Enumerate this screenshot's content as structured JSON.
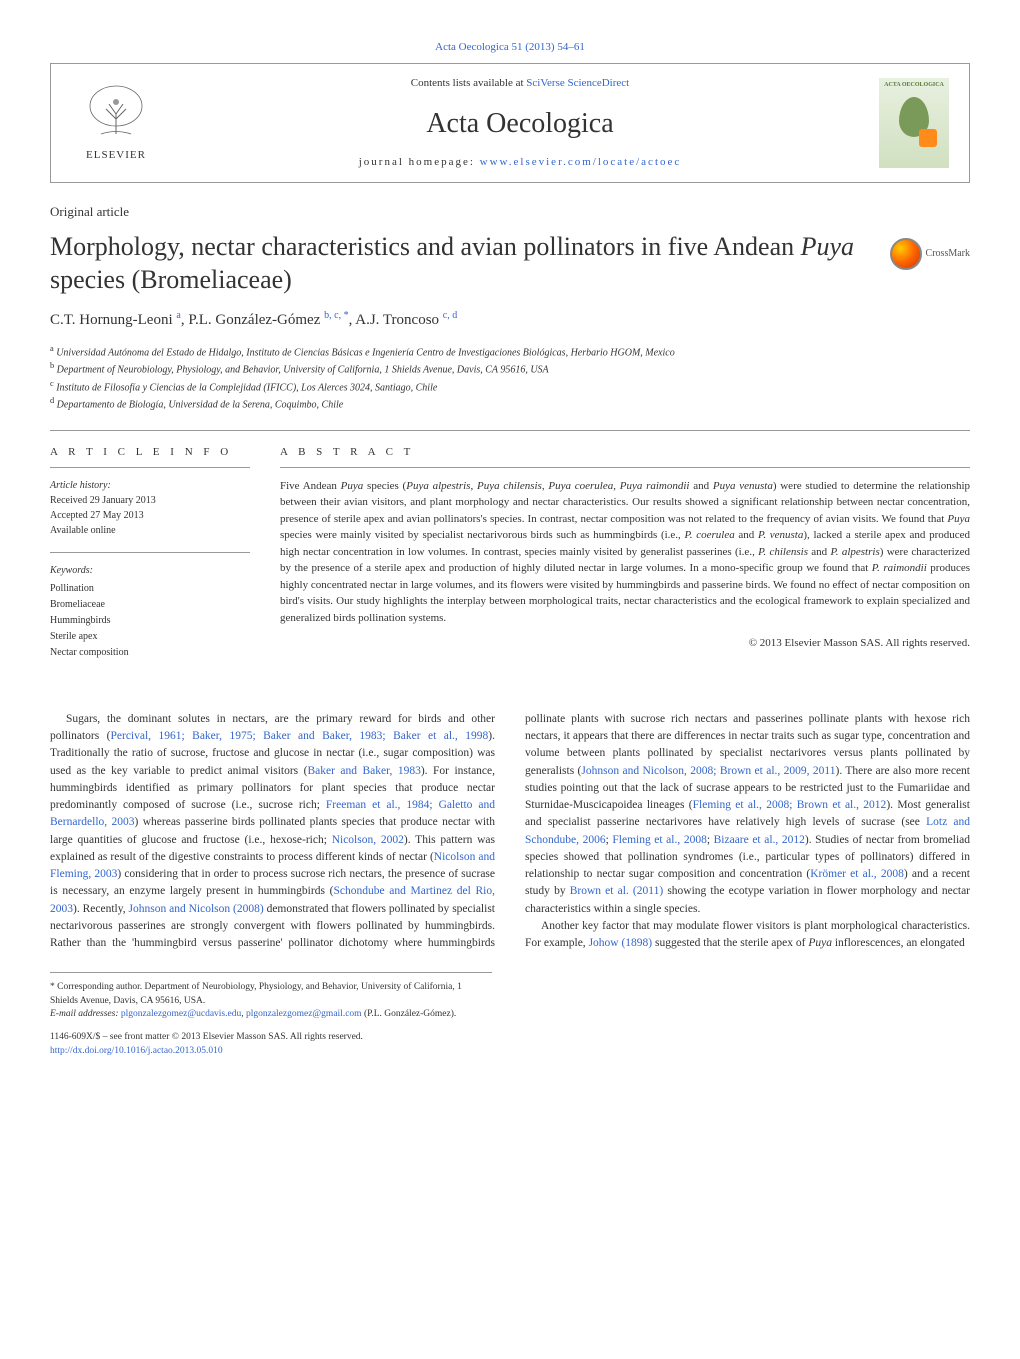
{
  "top_link": "Acta Oecologica 51 (2013) 54–61",
  "header": {
    "contents_prefix": "Contents lists available at ",
    "contents_link": "SciVerse ScienceDirect",
    "journal_name": "Acta Oecologica",
    "homepage_prefix": "journal homepage: ",
    "homepage_link": "www.elsevier.com/locate/actoec",
    "elsevier_label": "ELSEVIER",
    "cover_label": "ACTA OECOLOGICA"
  },
  "article_type": "Original article",
  "title_html": "Morphology, nectar characteristics and avian pollinators in five Andean <em>Puya</em> species (Bromeliaceae)",
  "crossmark_label": "CrossMark",
  "authors_html": "C.T. Hornung-Leoni <sup>a</sup>, P.L. González-Gómez <sup>b, c, *</sup>, A.J. Troncoso <sup>c, d</sup>",
  "affiliations": [
    "a Universidad Autónoma del Estado de Hidalgo, Instituto de Ciencias Básicas e Ingeniería Centro de Investigaciones Biológicas, Herbario HGOM, Mexico",
    "b Department of Neurobiology, Physiology, and Behavior, University of California, 1 Shields Avenue, Davis, CA 95616, USA",
    "c Instituto de Filosofía y Ciencias de la Complejidad (IFICC), Los Alerces 3024, Santiago, Chile",
    "d Departamento de Biología, Universidad de la Serena, Coquimbo, Chile"
  ],
  "article_info": {
    "heading": "A R T I C L E   I N F O",
    "history_label": "Article history:",
    "received": "Received 29 January 2013",
    "accepted": "Accepted 27 May 2013",
    "available": "Available online",
    "keywords_label": "Keywords:",
    "keywords": [
      "Pollination",
      "Bromeliaceae",
      "Hummingbirds",
      "Sterile apex",
      "Nectar composition"
    ]
  },
  "abstract": {
    "heading": "A B S T R A C T",
    "text_html": "Five Andean <em>Puya</em> species (<em>Puya alpestris</em>, <em>Puya chilensis</em>, <em>Puya coerulea</em>, <em>Puya raimondii</em> and <em>Puya venusta</em>) were studied to determine the relationship between their avian visitors, and plant morphology and nectar characteristics. Our results showed a significant relationship between nectar concentration, presence of sterile apex and avian pollinators's species. In contrast, nectar composition was not related to the frequency of avian visits. We found that <em>Puya</em> species were mainly visited by specialist nectarivorous birds such as hummingbirds (i.e., <em>P. coerulea</em> and <em>P. venusta</em>), lacked a sterile apex and produced high nectar concentration in low volumes. In contrast, species mainly visited by generalist passerines (i.e., <em>P. chilensis</em> and <em>P. alpestris</em>) were characterized by the presence of a sterile apex and production of highly diluted nectar in large volumes. In a mono-specific group we found that <em>P. raimondii</em> produces highly concentrated nectar in large volumes, and its flowers were visited by hummingbirds and passerine birds. We found no effect of nectar composition on bird's visits. Our study highlights the interplay between morphological traits, nectar characteristics and the ecological framework to explain specialized and generalized birds pollination systems.",
    "copyright": "© 2013 Elsevier Masson SAS. All rights reserved."
  },
  "body": {
    "para1_html": "Sugars, the dominant solutes in nectars, are the primary reward for birds and other pollinators (<a>Percival, 1961; Baker, 1975; Baker and Baker, 1983; Baker et al., 1998</a>). Traditionally the ratio of sucrose, fructose and glucose in nectar (i.e., sugar composition) was used as the key variable to predict animal visitors (<a>Baker and Baker, 1983</a>). For instance, hummingbirds identified as primary pollinators for plant species that produce nectar predominantly composed of sucrose (i.e., sucrose rich; <a>Freeman et al., 1984; Galetto and Bernardello, 2003</a>) whereas passerine birds pollinated plants species that produce nectar with large quantities of glucose and fructose (i.e., hexose-rich; <a>Nicolson, 2002</a>). This pattern was explained as result of the digestive constraints to process different kinds of nectar (<a>Nicolson and Fleming, 2003</a>) considering that in order to process sucrose rich nectars, the presence of sucrase is necessary, an enzyme largely present in hummingbirds (<a>Schondube and Martinez del Rio, 2003</a>). Recently, <a>Johnson and Nicolson (2008)</a> demonstrated that flowers pollinated by specialist nectarivorous passerines are strongly convergent with flowers pollinated by hummingbirds. Rather than the 'hummingbird versus passerine' pollinator dichotomy where hummingbirds pollinate plants with sucrose rich nectars and passerines pollinate plants with hexose rich nectars, it appears that there are differences in nectar traits such as sugar type, concentration and volume between plants pollinated by specialist nectarivores versus plants pollinated by generalists (<a>Johnson and Nicolson, 2008; Brown et al., 2009, 2011</a>). There are also more recent studies pointing out that the lack of sucrase appears to be restricted just to the Fumariidae and Sturnidae-Muscicapoidea lineages (<a>Fleming et al., 2008; Brown et al., 2012</a>). Most generalist and specialist passerine nectarivores have relatively high levels of sucrase (see <a>Lotz and Schondube, 2006</a>; <a>Fleming et al., 2008</a>; <a>Bizaare et al., 2012</a>). Studies of nectar from bromeliad species showed that pollination syndromes (i.e., particular types of pollinators) differed in relationship to nectar sugar composition and concentration (<a>Krömer et al., 2008</a>) and a recent study by <a>Brown et al. (2011)</a> showing the ecotype variation in flower morphology and nectar characteristics within a single species.",
    "para2_html": "Another key factor that may modulate flower visitors is plant morphological characteristics. For example, <a>Johow (1898)</a> suggested that the sterile apex of <em>Puya</em> inflorescences, an elongated"
  },
  "footnotes": {
    "corresponding_html": "* Corresponding author. Department of Neurobiology, Physiology, and Behavior, University of California, 1 Shields Avenue, Davis, CA 95616, USA.",
    "email_label": "E-mail addresses:",
    "emails_html": "<a>plgonzalezgomez@ucdavis.edu</a>, <a>plgonzalezgomez@gmail.com</a>",
    "email_suffix": "(P.L. González-Gómez)."
  },
  "footer": {
    "issn_line": "1146-609X/$ – see front matter © 2013 Elsevier Masson SAS. All rights reserved.",
    "doi": "http://dx.doi.org/10.1016/j.actao.2013.05.010"
  }
}
